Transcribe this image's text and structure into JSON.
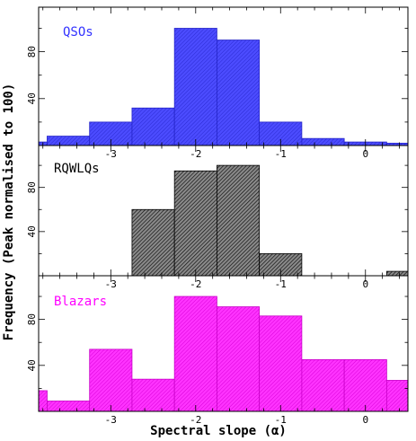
{
  "chart_data": {
    "type": "bar",
    "subtype": "stacked-panel step histograms",
    "xlabel": "Spectral slope (α)",
    "ylabel": "Frequency (Peak normalised to 100)",
    "xlim": [
      -3.85,
      0.5
    ],
    "ylim": [
      0,
      118
    ],
    "x_ticks": [
      -3,
      -2,
      -1,
      0
    ],
    "x_tick_labels": [
      "-3",
      "-2",
      "-1",
      "0"
    ],
    "y_ticks": [
      40,
      80
    ],
    "y_tick_labels": [
      "40",
      "80"
    ],
    "bin_edges": [
      -3.75,
      -3.25,
      -2.75,
      -2.25,
      -1.75,
      -1.25,
      -0.75,
      -0.25,
      0.25
    ],
    "panels": [
      {
        "label": "QSOs",
        "color": "#3333ff",
        "bins": [
          {
            "x0": -3.85,
            "x1": -3.75,
            "value": 3
          },
          {
            "x0": -3.75,
            "x1": -3.25,
            "value": 8
          },
          {
            "x0": -3.25,
            "x1": -2.75,
            "value": 20
          },
          {
            "x0": -2.75,
            "x1": -2.25,
            "value": 32
          },
          {
            "x0": -2.25,
            "x1": -1.75,
            "value": 100
          },
          {
            "x0": -1.75,
            "x1": -1.25,
            "value": 90
          },
          {
            "x0": -1.25,
            "x1": -0.75,
            "value": 20
          },
          {
            "x0": -0.75,
            "x1": -0.25,
            "value": 6
          },
          {
            "x0": -0.25,
            "x1": 0.25,
            "value": 3
          },
          {
            "x0": 0.25,
            "x1": 0.5,
            "value": 2
          }
        ]
      },
      {
        "label": "RQWLQs",
        "color": "#000000",
        "bins": [
          {
            "x0": -2.75,
            "x1": -2.25,
            "value": 60
          },
          {
            "x0": -2.25,
            "x1": -1.75,
            "value": 95
          },
          {
            "x0": -1.75,
            "x1": -1.25,
            "value": 100
          },
          {
            "x0": -1.25,
            "x1": -0.75,
            "value": 20
          },
          {
            "x0": 0.25,
            "x1": 0.5,
            "value": 4
          }
        ]
      },
      {
        "label": "Blazars",
        "color": "#ff00ff",
        "bins": [
          {
            "x0": -3.85,
            "x1": -3.75,
            "value": 18
          },
          {
            "x0": -3.75,
            "x1": -3.25,
            "value": 9
          },
          {
            "x0": -3.25,
            "x1": -2.75,
            "value": 54
          },
          {
            "x0": -2.75,
            "x1": -2.25,
            "value": 28
          },
          {
            "x0": -2.25,
            "x1": -1.75,
            "value": 100
          },
          {
            "x0": -1.75,
            "x1": -1.25,
            "value": 91
          },
          {
            "x0": -1.25,
            "x1": -0.75,
            "value": 83
          },
          {
            "x0": -0.75,
            "x1": -0.25,
            "value": 45
          },
          {
            "x0": -0.25,
            "x1": 0.25,
            "value": 45
          },
          {
            "x0": 0.25,
            "x1": 0.5,
            "value": 27
          }
        ]
      }
    ]
  }
}
